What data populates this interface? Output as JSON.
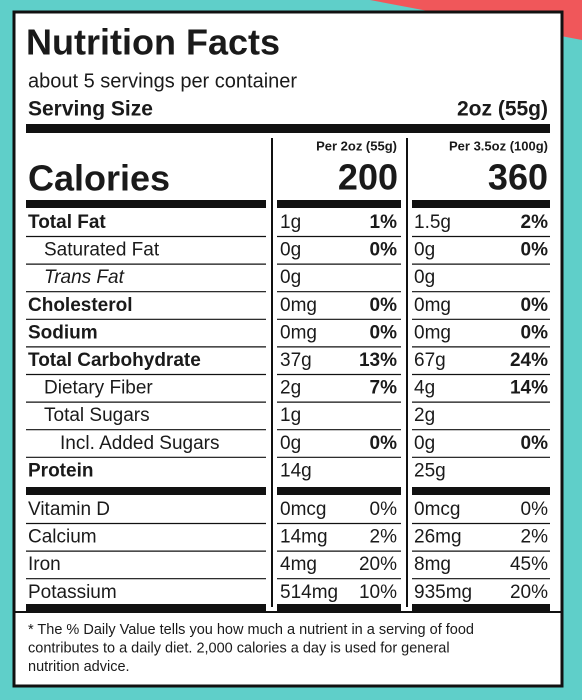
{
  "header": {
    "title": "Nutrition Facts",
    "servings": "about 5 servings per container",
    "serving_size_label": "Serving Size",
    "serving_size": "2oz (55g)"
  },
  "columns": [
    "Per 2oz (55g)",
    "Per 3.5oz (100g)"
  ],
  "calories": {
    "label": "Calories",
    "values": [
      "200",
      "360"
    ]
  },
  "nutrients": [
    {
      "name": "Total Fat",
      "bold": true,
      "indent": 0,
      "cells": [
        [
          "1g",
          "1%"
        ],
        [
          "1.5g",
          "2%"
        ]
      ]
    },
    {
      "name": "Saturated Fat",
      "bold": false,
      "indent": 1,
      "cells": [
        [
          "0g",
          "0%"
        ],
        [
          "0g",
          "0%"
        ]
      ]
    },
    {
      "name": "Trans Fat",
      "bold": false,
      "indent": 1,
      "italic": true,
      "cells": [
        [
          "0g",
          null
        ],
        [
          "0g",
          null
        ]
      ]
    },
    {
      "name": "Cholesterol",
      "bold": true,
      "indent": 0,
      "cells": [
        [
          "0mg",
          "0%"
        ],
        [
          "0mg",
          "0%"
        ]
      ]
    },
    {
      "name": "Sodium",
      "bold": true,
      "indent": 0,
      "cells": [
        [
          "0mg",
          "0%"
        ],
        [
          "0mg",
          "0%"
        ]
      ]
    },
    {
      "name": "Total Carbohydrate",
      "bold": true,
      "indent": 0,
      "cells": [
        [
          "37g",
          "13%"
        ],
        [
          "67g",
          "24%"
        ]
      ]
    },
    {
      "name": "Dietary Fiber",
      "bold": false,
      "indent": 1,
      "cells": [
        [
          "2g",
          "7%"
        ],
        [
          "4g",
          "14%"
        ]
      ]
    },
    {
      "name": "Total Sugars",
      "bold": false,
      "indent": 1,
      "cells": [
        [
          "1g",
          null
        ],
        [
          "2g",
          null
        ]
      ]
    },
    {
      "name": "Incl. Added Sugars",
      "bold": false,
      "indent": 2,
      "cells": [
        [
          "0g",
          "0%"
        ],
        [
          "0g",
          "0%"
        ]
      ]
    },
    {
      "name": "Protein",
      "bold": true,
      "indent": 0,
      "cells": [
        [
          "14g",
          null
        ],
        [
          "25g",
          null
        ]
      ]
    }
  ],
  "vitamins": [
    {
      "name": "Vitamin D",
      "cells": [
        [
          "0mcg",
          "0%"
        ],
        [
          "0mcg",
          "0%"
        ]
      ]
    },
    {
      "name": "Calcium",
      "cells": [
        [
          "14mg",
          "2%"
        ],
        [
          "26mg",
          "2%"
        ]
      ]
    },
    {
      "name": "Iron",
      "cells": [
        [
          "4mg",
          "20%"
        ],
        [
          "8mg",
          "45%"
        ]
      ]
    },
    {
      "name": "Potassium",
      "cells": [
        [
          "514mg",
          "10%"
        ],
        [
          "935mg",
          "20%"
        ]
      ]
    }
  ],
  "footnote": [
    "* The % Daily Value tells you how much a nutrient in a serving of food",
    "contributes to a daily diet. 2,000 calories a day is used for general",
    "nutrition advice."
  ]
}
